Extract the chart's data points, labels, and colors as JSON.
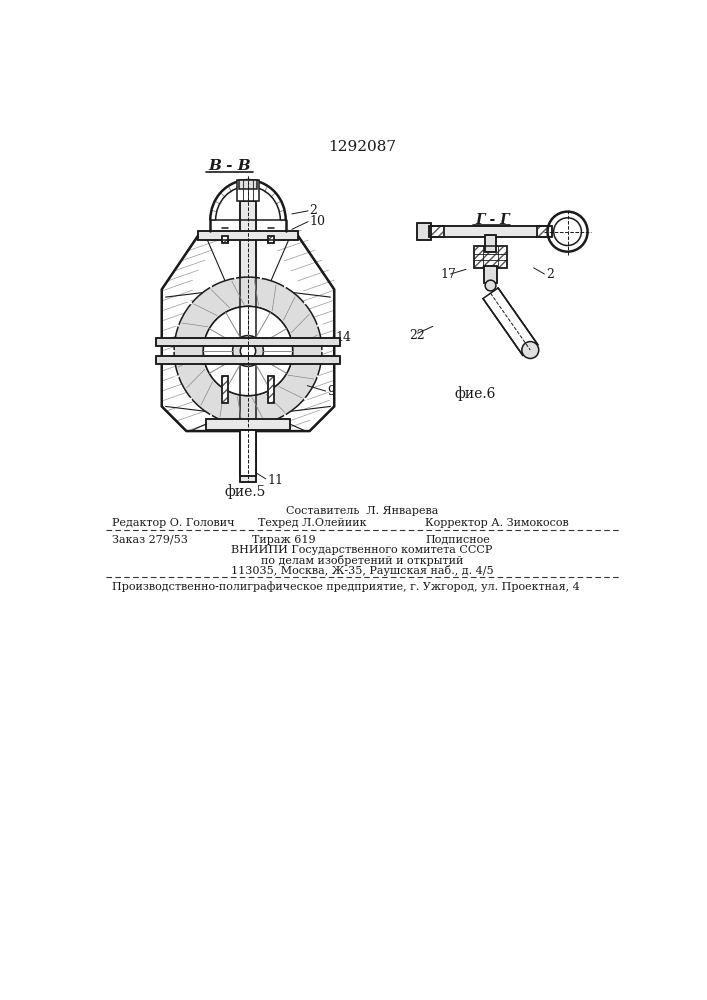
{
  "patent_number": "1292087",
  "background_color": "#ffffff",
  "text_color": "#1a1a1a",
  "fig5_label": "фие.5",
  "fig6_label": "фие.6",
  "section_bb": "В - В",
  "section_gg": "Г - Г",
  "footer": {
    "sestavitel": "Составитель  Л. Январева",
    "redaktor": "Редактор О. Голович",
    "tehred": "Техред Л.Олейиик",
    "korrektor": "Корректор А. Зимокосов",
    "zakaz": "Заказ 279/53",
    "tirazh": "Тираж 619",
    "podpisnoe": "Подписное",
    "vniip1": "ВНИИПИ Государственного комитета СССР",
    "vniip2": "по делам изобретений и открытий",
    "vniip3": "113035, Москва, Ж-35, Раушская наб., д. 4/5",
    "proizv": "Производственно-полиграфическое предприятие, г. Ужгород, ул. Проектная, 4"
  }
}
